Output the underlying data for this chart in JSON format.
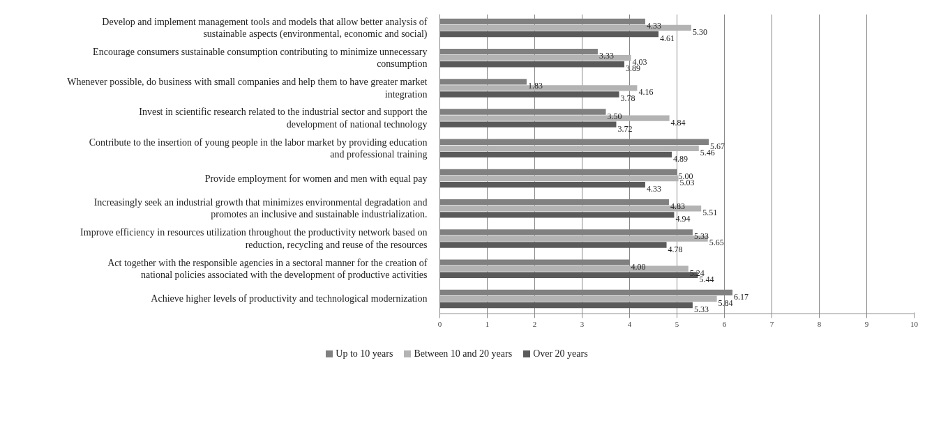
{
  "chart_data": {
    "type": "bar",
    "orientation": "horizontal",
    "categories": [
      "Develop and implement management tools and models that allow better analysis of sustainable aspects (environmental, economic and social)",
      "Encourage consumers sustainable consumption contributing to minimize unnecessary consumption",
      "Whenever possible, do business with small companies and help them to have greater market integration",
      "Invest in scientific research related to the industrial sector and support the development of national technology",
      "Contribute to the insertion of young people in the labor market by providing education and professional training",
      "Provide employment for women and men with equal pay",
      "Increasingly seek an industrial growth that minimizes environmental degradation and promotes an inclusive and sustainable industrialization.",
      "Improve efficiency in resources utilization throughout the productivity network based on reduction, recycling and reuse of the resources",
      "Act together with the responsible agencies in a sectoral manner for the creation of national policies associated with the development of productive activities",
      "Achieve higher levels of productivity and technological modernization"
    ],
    "series": [
      {
        "name": "Up to 10 years",
        "color": "#808080",
        "values": [
          4.33,
          3.33,
          1.83,
          3.5,
          5.67,
          5.0,
          4.83,
          5.33,
          4.0,
          6.17
        ],
        "value_labels": [
          "4.33",
          "3.33",
          "1.83",
          "3.50",
          "5.67",
          "5.00",
          "4.83",
          "5.33",
          "4.00",
          "6.17"
        ]
      },
      {
        "name": "Between 10 and 20 years",
        "color": "#b3b3b3",
        "values": [
          5.3,
          4.03,
          4.16,
          4.84,
          5.46,
          5.03,
          5.51,
          5.65,
          5.24,
          5.84
        ],
        "value_labels": [
          "5.30",
          "4.03",
          "4.16",
          "4.84",
          "5.46",
          "5.03",
          "5.51",
          "5.65",
          "5.24",
          "5.84"
        ]
      },
      {
        "name": "Over 20 years",
        "color": "#5a5a5a",
        "values": [
          4.61,
          3.89,
          3.78,
          3.72,
          4.89,
          4.33,
          4.94,
          4.78,
          5.44,
          5.33
        ],
        "value_labels": [
          "4.61",
          "3.89",
          "3.78",
          "3.72",
          "4.89",
          "4.33",
          "4.94",
          "4.78",
          "5.44",
          "5.33"
        ]
      }
    ],
    "xlim": [
      0,
      10
    ],
    "xticks": [
      0,
      1,
      2,
      3,
      4,
      5,
      6,
      7,
      8,
      9,
      10
    ],
    "grid": "x",
    "legend": "bottom"
  }
}
